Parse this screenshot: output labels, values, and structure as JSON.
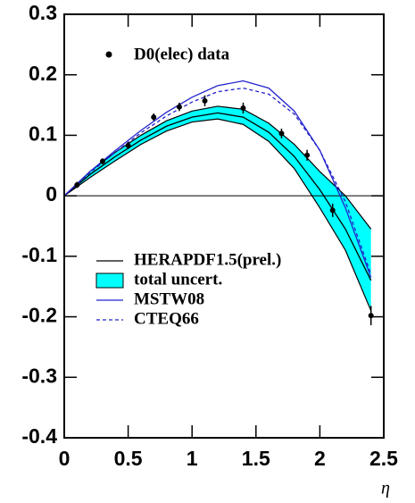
{
  "chart_data": {
    "type": "line",
    "x_label": "η",
    "xlim": [
      0,
      2.5
    ],
    "xticks": [
      0,
      0.5,
      1,
      1.5,
      2,
      2.5
    ],
    "ylim": [
      -0.4,
      0.3
    ],
    "yticks": [
      -0.4,
      -0.3,
      -0.2,
      -0.1,
      0,
      0.1,
      0.2,
      0.3
    ],
    "data": {
      "name": "D0(elec) data",
      "color": "#000000",
      "x": [
        0.1,
        0.3,
        0.5,
        0.7,
        0.9,
        1.1,
        1.4,
        1.7,
        1.9,
        2.1,
        2.4
      ],
      "values": [
        0.018,
        0.057,
        0.083,
        0.13,
        0.147,
        0.157,
        0.145,
        0.103,
        0.067,
        -0.024,
        -0.198
      ],
      "errors": [
        0.005,
        0.005,
        0.006,
        0.006,
        0.007,
        0.009,
        0.009,
        0.008,
        0.009,
        0.011,
        0.016
      ]
    },
    "x": [
      0,
      0.2,
      0.4,
      0.6,
      0.8,
      1.0,
      1.2,
      1.4,
      1.6,
      1.8,
      2.0,
      2.2,
      2.4
    ],
    "band": {
      "name": "total uncert.",
      "color": "#00ffff",
      "upper": [
        0,
        0.04,
        0.072,
        0.1,
        0.124,
        0.14,
        0.148,
        0.143,
        0.12,
        0.085,
        0.04,
        0.0,
        -0.055
      ],
      "lower": [
        0,
        0.03,
        0.058,
        0.085,
        0.107,
        0.122,
        0.127,
        0.118,
        0.09,
        0.045,
        -0.02,
        -0.09,
        -0.19
      ]
    },
    "series": [
      {
        "name": "HERAPDF1.5(prel.)",
        "color": "#000000",
        "dash": false,
        "values": [
          0,
          0.035,
          0.065,
          0.092,
          0.115,
          0.13,
          0.137,
          0.13,
          0.105,
          0.065,
          0.01,
          -0.055,
          -0.14
        ]
      },
      {
        "name": "MSTW08",
        "color": "#2222cc",
        "dash": false,
        "values": [
          0,
          0.04,
          0.075,
          0.108,
          0.138,
          0.163,
          0.182,
          0.19,
          0.178,
          0.14,
          0.075,
          -0.02,
          -0.135
        ]
      },
      {
        "name": "CTEQ66",
        "color": "#2222cc",
        "dash": true,
        "values": [
          0,
          0.038,
          0.072,
          0.104,
          0.132,
          0.155,
          0.172,
          0.178,
          0.168,
          0.135,
          0.075,
          -0.01,
          -0.13
        ]
      }
    ]
  }
}
